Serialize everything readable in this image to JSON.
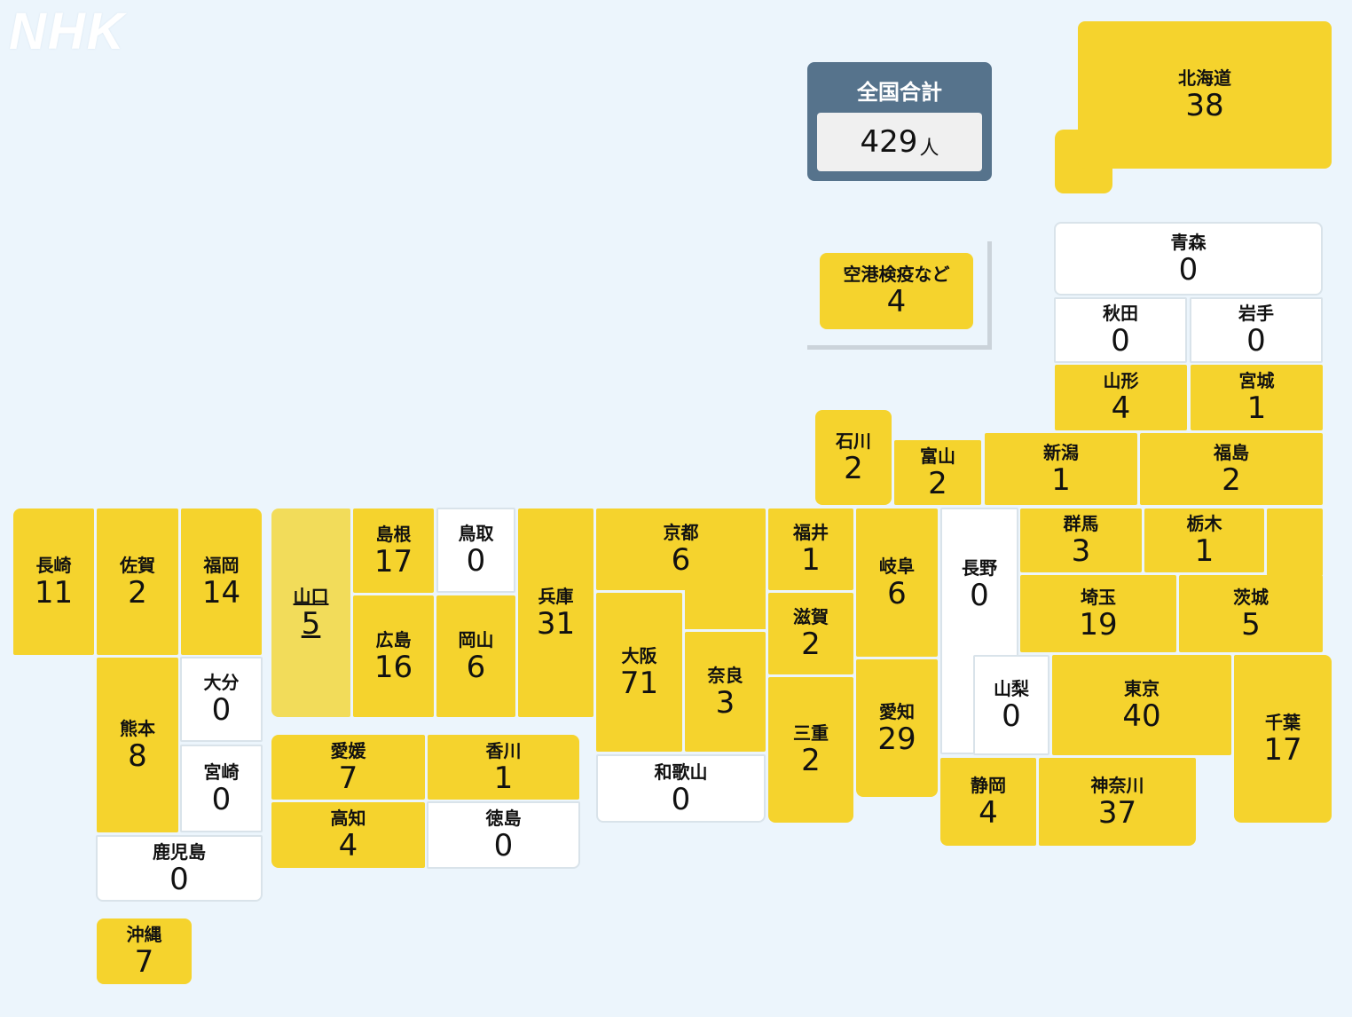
{
  "logo": "NHK",
  "total": {
    "label": "全国合計",
    "value": "429",
    "unit": "人"
  },
  "airport": {
    "name": "空港検疫など",
    "count": "4"
  },
  "prefectures": {
    "hokkaido": {
      "name": "北海道",
      "count": "38"
    },
    "aomori": {
      "name": "青森",
      "count": "0"
    },
    "akita": {
      "name": "秋田",
      "count": "0"
    },
    "iwate": {
      "name": "岩手",
      "count": "0"
    },
    "yamagata": {
      "name": "山形",
      "count": "4"
    },
    "miyagi": {
      "name": "宮城",
      "count": "1"
    },
    "ishikawa": {
      "name": "石川",
      "count": "2"
    },
    "toyama": {
      "name": "富山",
      "count": "2"
    },
    "niigata": {
      "name": "新潟",
      "count": "1"
    },
    "fukushima": {
      "name": "福島",
      "count": "2"
    },
    "nagasaki": {
      "name": "長崎",
      "count": "11"
    },
    "saga": {
      "name": "佐賀",
      "count": "2"
    },
    "fukuoka": {
      "name": "福岡",
      "count": "14"
    },
    "yamaguchi": {
      "name": "山口",
      "count": "5"
    },
    "shimane": {
      "name": "島根",
      "count": "17"
    },
    "tottori": {
      "name": "鳥取",
      "count": "0"
    },
    "hyogo": {
      "name": "兵庫",
      "count": "31"
    },
    "kyoto": {
      "name": "京都",
      "count": "6"
    },
    "fukui": {
      "name": "福井",
      "count": "1"
    },
    "gifu": {
      "name": "岐阜",
      "count": "6"
    },
    "nagano": {
      "name": "長野",
      "count": "0"
    },
    "gunma": {
      "name": "群馬",
      "count": "3"
    },
    "tochigi": {
      "name": "栃木",
      "count": "1"
    },
    "hiroshima": {
      "name": "広島",
      "count": "16"
    },
    "okayama": {
      "name": "岡山",
      "count": "6"
    },
    "osaka": {
      "name": "大阪",
      "count": "71"
    },
    "nara": {
      "name": "奈良",
      "count": "3"
    },
    "shiga": {
      "name": "滋賀",
      "count": "2"
    },
    "saitama": {
      "name": "埼玉",
      "count": "19"
    },
    "ibaraki": {
      "name": "茨城",
      "count": "5"
    },
    "kumamoto": {
      "name": "熊本",
      "count": "8"
    },
    "oita": {
      "name": "大分",
      "count": "0"
    },
    "miyazaki": {
      "name": "宮崎",
      "count": "0"
    },
    "mie": {
      "name": "三重",
      "count": "2"
    },
    "aichi": {
      "name": "愛知",
      "count": "29"
    },
    "yamanashi": {
      "name": "山梨",
      "count": "0"
    },
    "tokyo": {
      "name": "東京",
      "count": "40"
    },
    "chiba": {
      "name": "千葉",
      "count": "17"
    },
    "ehime": {
      "name": "愛媛",
      "count": "7"
    },
    "kagawa": {
      "name": "香川",
      "count": "1"
    },
    "kochi": {
      "name": "高知",
      "count": "4"
    },
    "tokushima": {
      "name": "徳島",
      "count": "0"
    },
    "wakayama": {
      "name": "和歌山",
      "count": "0"
    },
    "shizuoka": {
      "name": "静岡",
      "count": "4"
    },
    "kanagawa": {
      "name": "神奈川",
      "count": "37"
    },
    "kagoshima": {
      "name": "鹿児島",
      "count": "0"
    },
    "okinawa": {
      "name": "沖縄",
      "count": "7"
    }
  },
  "colors": {
    "positive": "#f5d32d",
    "zero": "#ffffff",
    "selected": "#f2dc5a",
    "total_box": "#56738c",
    "background": "#ecf5fc"
  }
}
